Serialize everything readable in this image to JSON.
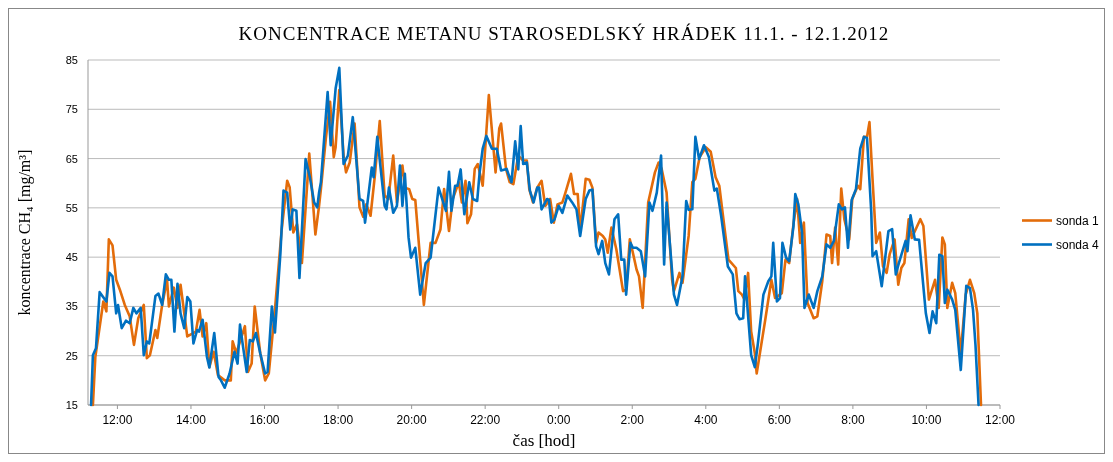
{
  "chart_data": {
    "type": "line",
    "title": "KONCENTRACE METANU STAROSEDLSKÝ HRÁDEK 11.1. - 12.1.2012",
    "xlabel": "čas [hod]",
    "ylabel": "koncentrace CH₄ [mg/m³]",
    "xlim": [
      "2012-01-11T11:12",
      "2012-01-12T12:00"
    ],
    "xticks": [
      {
        "value": "2012-01-11T12:00",
        "label": "12:00"
      },
      {
        "value": "2012-01-11T14:00",
        "label": "14:00"
      },
      {
        "value": "2012-01-11T16:00",
        "label": "16:00"
      },
      {
        "value": "2012-01-11T18:00",
        "label": "18:00"
      },
      {
        "value": "2012-01-11T20:00",
        "label": "20:00"
      },
      {
        "value": "2012-01-11T22:00",
        "label": "22:00"
      },
      {
        "value": "2012-01-12T00:00",
        "label": "0:00"
      },
      {
        "value": "2012-01-12T02:00",
        "label": "2:00"
      },
      {
        "value": "2012-01-12T04:00",
        "label": "4:00"
      },
      {
        "value": "2012-01-12T06:00",
        "label": "6:00"
      },
      {
        "value": "2012-01-12T08:00",
        "label": "8:00"
      },
      {
        "value": "2012-01-12T10:00",
        "label": "10:00"
      },
      {
        "value": "2012-01-12T12:00",
        "label": "12:00"
      }
    ],
    "ylim": [
      15,
      85
    ],
    "yticks": [
      15,
      25,
      35,
      45,
      55,
      65,
      75,
      85
    ],
    "grid": "y",
    "legend": "right",
    "marker": "none",
    "line_style": "solid",
    "series": [
      {
        "name": "sonda 1",
        "color": "#e36c0a",
        "x": [
          "2012-01-11T11:20",
          "2012-01-11T11:24",
          "2012-01-11T11:37",
          "2012-01-11T11:42",
          "2012-01-11T11:46",
          "2012-01-11T11:52",
          "2012-01-11T11:58",
          "2012-01-11T12:04",
          "2012-01-11T12:12",
          "2012-01-11T12:20",
          "2012-01-11T12:27",
          "2012-01-11T12:34",
          "2012-01-11T12:43",
          "2012-01-11T12:48",
          "2012-01-11T12:53",
          "2012-01-11T13:02",
          "2012-01-11T13:05",
          "2012-01-11T13:13",
          "2012-01-11T13:21",
          "2012-01-11T13:24",
          "2012-01-11T13:32",
          "2012-01-11T13:38",
          "2012-01-11T13:43",
          "2012-01-11T13:54",
          "2012-01-11T14:08",
          "2012-01-11T14:14",
          "2012-01-11T14:19",
          "2012-01-11T14:25",
          "2012-01-11T14:30",
          "2012-01-11T14:37",
          "2012-01-11T14:44",
          "2012-01-11T14:55",
          "2012-01-11T15:05",
          "2012-01-11T15:08",
          "2012-01-11T15:14",
          "2012-01-11T15:28",
          "2012-01-11T15:33",
          "2012-01-11T15:39",
          "2012-01-11T15:44",
          "2012-01-11T15:53",
          "2012-01-11T16:01",
          "2012-01-11T16:07",
          "2012-01-11T16:17",
          "2012-01-11T16:28",
          "2012-01-11T16:37",
          "2012-01-11T16:41",
          "2012-01-11T16:47",
          "2012-01-11T16:53",
          "2012-01-11T17:01",
          "2012-01-11T17:13",
          "2012-01-11T17:23",
          "2012-01-11T17:29",
          "2012-01-11T17:32",
          "2012-01-11T17:40",
          "2012-01-11T17:47",
          "2012-01-11T17:53",
          "2012-01-11T17:56",
          "2012-01-11T18:02",
          "2012-01-11T18:09",
          "2012-01-11T18:13",
          "2012-01-11T18:19",
          "2012-01-11T18:27",
          "2012-01-11T18:35",
          "2012-01-11T18:41",
          "2012-01-11T18:46",
          "2012-01-11T18:53",
          "2012-01-11T19:00",
          "2012-01-11T19:08",
          "2012-01-11T19:16",
          "2012-01-11T19:22",
          "2012-01-11T19:30",
          "2012-01-11T19:36",
          "2012-01-11T19:45",
          "2012-01-11T19:49",
          "2012-01-11T19:56",
          "2012-01-11T20:01",
          "2012-01-11T20:06",
          "2012-01-11T20:20",
          "2012-01-11T20:31",
          "2012-01-11T20:39",
          "2012-01-11T20:47",
          "2012-01-11T20:53",
          "2012-01-11T21:01",
          "2012-01-11T21:07",
          "2012-01-11T21:17",
          "2012-01-11T21:22",
          "2012-01-11T21:28",
          "2012-01-11T21:31",
          "2012-01-11T21:37",
          "2012-01-11T21:43",
          "2012-01-11T21:48",
          "2012-01-11T21:56",
          "2012-01-11T22:06",
          "2012-01-11T22:17",
          "2012-01-11T22:23",
          "2012-01-11T22:26",
          "2012-01-11T22:34",
          "2012-01-11T22:40",
          "2012-01-11T22:46",
          "2012-01-11T22:54",
          "2012-01-11T23:02",
          "2012-01-11T23:08",
          "2012-01-11T23:12",
          "2012-01-11T23:18",
          "2012-01-11T23:25",
          "2012-01-11T23:32",
          "2012-01-11T23:38",
          "2012-01-11T23:46",
          "2012-01-11T23:52",
          "2012-01-11T23:58",
          "2012-01-12T00:06",
          "2012-01-12T00:11",
          "2012-01-12T00:20",
          "2012-01-12T00:25",
          "2012-01-12T00:31",
          "2012-01-12T00:35",
          "2012-01-12T00:44",
          "2012-01-12T00:50",
          "2012-01-12T00:55",
          "2012-01-12T01:01",
          "2012-01-12T01:05",
          "2012-01-12T01:12",
          "2012-01-12T01:16",
          "2012-01-12T01:20",
          "2012-01-12T01:26",
          "2012-01-12T01:34",
          "2012-01-12T01:45",
          "2012-01-12T01:50",
          "2012-01-12T01:56",
          "2012-01-12T02:01",
          "2012-01-12T02:07",
          "2012-01-12T02:11",
          "2012-01-12T02:17",
          "2012-01-12T02:26",
          "2012-01-12T02:37",
          "2012-01-12T02:43",
          "2012-01-12T02:48",
          "2012-01-12T02:56",
          "2012-01-12T03:05",
          "2012-01-12T03:08",
          "2012-01-12T03:17",
          "2012-01-12T03:22",
          "2012-01-12T03:32",
          "2012-01-12T03:38",
          "2012-01-12T03:43",
          "2012-01-12T03:50",
          "2012-01-12T04:00",
          "2012-01-12T04:08",
          "2012-01-12T04:16",
          "2012-01-12T04:22",
          "2012-01-12T04:28",
          "2012-01-12T04:37",
          "2012-01-12T04:49",
          "2012-01-12T04:53",
          "2012-01-12T04:59",
          "2012-01-12T05:03",
          "2012-01-12T05:09",
          "2012-01-12T05:14",
          "2012-01-12T05:20",
          "2012-01-12T05:23",
          "2012-01-12T05:37",
          "2012-01-12T05:47",
          "2012-01-12T05:53",
          "2012-01-12T05:58",
          "2012-01-12T06:04",
          "2012-01-12T06:10",
          "2012-01-12T06:16",
          "2012-01-12T06:23",
          "2012-01-12T06:29",
          "2012-01-12T06:34",
          "2012-01-12T06:40",
          "2012-01-12T06:46",
          "2012-01-12T06:56",
          "2012-01-12T07:02",
          "2012-01-12T07:10",
          "2012-01-12T07:17",
          "2012-01-12T07:23",
          "2012-01-12T07:26",
          "2012-01-12T07:31",
          "2012-01-12T07:36",
          "2012-01-12T07:41",
          "2012-01-12T07:46",
          "2012-01-12T07:54",
          "2012-01-12T07:59",
          "2012-01-12T08:08",
          "2012-01-12T08:12",
          "2012-01-12T08:18",
          "2012-01-12T08:23",
          "2012-01-12T08:27",
          "2012-01-12T08:32",
          "2012-01-12T08:38",
          "2012-01-12T08:44",
          "2012-01-12T08:49",
          "2012-01-12T08:55",
          "2012-01-12T09:00",
          "2012-01-12T09:08",
          "2012-01-12T09:14",
          "2012-01-12T09:19",
          "2012-01-12T09:24",
          "2012-01-12T09:31",
          "2012-01-12T09:36",
          "2012-01-12T09:50",
          "2012-01-12T09:55",
          "2012-01-12T10:04",
          "2012-01-12T10:14",
          "2012-01-12T10:20",
          "2012-01-12T10:26",
          "2012-01-12T10:30",
          "2012-01-12T10:34",
          "2012-01-12T10:42",
          "2012-01-12T10:47",
          "2012-01-12T10:56",
          "2012-01-12T11:04",
          "2012-01-12T11:11",
          "2012-01-12T11:18",
          "2012-01-12T11:23",
          "2012-01-12T11:29"
        ],
        "values": [
          15,
          24.8,
          36.0,
          34.0,
          48.6,
          47.4,
          40.4,
          38.4,
          35.3,
          33.0,
          27.2,
          32.6,
          35.3,
          24.5,
          25.1,
          30.2,
          28.6,
          35.3,
          40.4,
          35.0,
          38.8,
          34.7,
          39.4,
          28.9,
          29.9,
          34.3,
          28.9,
          31.6,
          22.7,
          25.8,
          21.1,
          20.0,
          20.0,
          27.9,
          25.5,
          31.0,
          21.7,
          23.4,
          35.0,
          25.5,
          20.0,
          21.4,
          34.3,
          50.6,
          60.5,
          59.2,
          50.0,
          51.7,
          43.8,
          66.0,
          49.6,
          55.4,
          58.8,
          69.0,
          76.5,
          65.3,
          67.3,
          78.9,
          65.6,
          62.2,
          64.2,
          72.1,
          55.1,
          53.2,
          55.7,
          53.4,
          61.5,
          72.6,
          57.5,
          56.8,
          65.6,
          56.1,
          63.6,
          59.1,
          58.8,
          56.8,
          56.6,
          35.3,
          47.9,
          47.9,
          50.6,
          58.8,
          50.3,
          56.8,
          60.2,
          56.1,
          60.5,
          51.9,
          53.7,
          62.9,
          63.9,
          59.5,
          77.9,
          62.2,
          71.1,
          72.1,
          62.9,
          60.2,
          59.8,
          65.6,
          64.6,
          64.6,
          58.8,
          56.1,
          59.1,
          60.5,
          55.4,
          56.8,
          52.0,
          55.7,
          56.1,
          58.1,
          61.9,
          57.8,
          57.8,
          50.3,
          60.9,
          60.7,
          59.1,
          47.9,
          50.0,
          49.3,
          48.6,
          45.9,
          51.0,
          46.6,
          38.1,
          38.4,
          48.6,
          45.9,
          42.5,
          41.1,
          34.7,
          56.1,
          62.2,
          64.2,
          62.9,
          58.1,
          40.4,
          38.1,
          41.8,
          39.8,
          49.3,
          60.2,
          60.9,
          65.3,
          67.3,
          66.4,
          61.2,
          59.5,
          53.4,
          44.5,
          42.8,
          38.1,
          37.4,
          36.4,
          41.8,
          29.9,
          25.5,
          21.4,
          32.3,
          40.4,
          36.7,
          37.1,
          37.7,
          44.5,
          43.8,
          51.7,
          56.8,
          47.9,
          52.0,
          35.7,
          32.6,
          33.0,
          40.1,
          49.6,
          49.3,
          43.8,
          51.0,
          43.5,
          58.9,
          52.7,
          48.6,
          56.8,
          59.5,
          58.8,
          69.4,
          69.4,
          72.4,
          60.9,
          47.9,
          50.0,
          43.2,
          41.8,
          45.6,
          48.6,
          39.4,
          42.8,
          43.8,
          52.7,
          48.9,
          52.7,
          51.3,
          36.4,
          40.4,
          34.7,
          49.0,
          47.6,
          34.7,
          39.8,
          37.7,
          25.5,
          37.4,
          40.4,
          37.7,
          33.6,
          15
        ]
      },
      {
        "name": "sonda 4",
        "color": "#0070c0",
        "x": [
          "2012-01-11T11:17",
          "2012-01-11T11:20",
          "2012-01-11T11:25",
          "2012-01-11T11:31",
          "2012-01-11T11:42",
          "2012-01-11T11:47",
          "2012-01-11T11:52",
          "2012-01-11T11:58",
          "2012-01-11T12:01",
          "2012-01-11T12:07",
          "2012-01-11T12:14",
          "2012-01-11T12:20",
          "2012-01-11T12:26",
          "2012-01-11T12:31",
          "2012-01-11T12:38",
          "2012-01-11T12:43",
          "2012-01-11T12:48",
          "2012-01-11T12:52",
          "2012-01-11T13:02",
          "2012-01-11T13:07",
          "2012-01-11T13:13",
          "2012-01-11T13:19",
          "2012-01-11T13:24",
          "2012-01-11T13:28",
          "2012-01-11T13:33",
          "2012-01-11T13:38",
          "2012-01-11T13:43",
          "2012-01-11T13:49",
          "2012-01-11T13:54",
          "2012-01-11T13:59",
          "2012-01-11T14:04",
          "2012-01-11T14:10",
          "2012-01-11T14:13",
          "2012-01-11T14:19",
          "2012-01-11T14:26",
          "2012-01-11T14:30",
          "2012-01-11T14:38",
          "2012-01-11T14:45",
          "2012-01-11T14:49",
          "2012-01-11T14:55",
          "2012-01-11T15:03",
          "2012-01-11T15:11",
          "2012-01-11T15:16",
          "2012-01-11T15:20",
          "2012-01-11T15:25",
          "2012-01-11T15:31",
          "2012-01-11T15:36",
          "2012-01-11T15:41",
          "2012-01-11T15:46",
          "2012-01-11T15:53",
          "2012-01-11T16:01",
          "2012-01-11T16:05",
          "2012-01-11T16:12",
          "2012-01-11T16:17",
          "2012-01-11T16:26",
          "2012-01-11T16:31",
          "2012-01-11T16:37",
          "2012-01-11T16:42",
          "2012-01-11T16:46",
          "2012-01-11T16:52",
          "2012-01-11T16:57",
          "2012-01-11T17:07",
          "2012-01-11T17:14",
          "2012-01-11T17:21",
          "2012-01-11T17:26",
          "2012-01-11T17:29",
          "2012-01-11T17:32",
          "2012-01-11T17:43",
          "2012-01-11T17:48",
          "2012-01-11T17:56",
          "2012-01-11T18:02",
          "2012-01-11T18:09",
          "2012-01-11T18:16",
          "2012-01-11T18:24",
          "2012-01-11T18:35",
          "2012-01-11T18:41",
          "2012-01-11T18:44",
          "2012-01-11T18:55",
          "2012-01-11T18:58",
          "2012-01-11T19:04",
          "2012-01-11T19:16",
          "2012-01-11T19:19",
          "2012-01-11T19:23",
          "2012-01-11T19:30",
          "2012-01-11T19:36",
          "2012-01-11T19:41",
          "2012-01-11T19:45",
          "2012-01-11T19:49",
          "2012-01-11T19:55",
          "2012-01-11T19:59",
          "2012-01-11T20:06",
          "2012-01-11T20:14",
          "2012-01-11T20:23",
          "2012-01-11T20:31",
          "2012-01-11T20:44",
          "2012-01-11T20:56",
          "2012-01-11T21:01",
          "2012-01-11T21:05",
          "2012-01-11T21:11",
          "2012-01-11T21:15",
          "2012-01-11T21:20",
          "2012-01-11T21:26",
          "2012-01-11T21:34",
          "2012-01-11T21:40",
          "2012-01-11T21:47",
          "2012-01-11T21:51",
          "2012-01-11T21:56",
          "2012-01-11T22:02",
          "2012-01-11T22:11",
          "2012-01-11T22:19",
          "2012-01-11T22:26",
          "2012-01-11T22:35",
          "2012-01-11T22:39",
          "2012-01-11T22:43",
          "2012-01-11T22:49",
          "2012-01-11T22:54",
          "2012-01-11T22:58",
          "2012-01-11T23:02",
          "2012-01-11T23:08",
          "2012-01-11T23:13",
          "2012-01-11T23:19",
          "2012-01-11T23:25",
          "2012-01-11T23:28",
          "2012-01-11T23:32",
          "2012-01-11T23:41",
          "2012-01-11T23:44",
          "2012-01-11T23:48",
          "2012-01-11T23:53",
          "2012-01-12T00:00",
          "2012-01-12T00:06",
          "2012-01-12T00:14",
          "2012-01-12T00:22",
          "2012-01-12T00:29",
          "2012-01-12T00:35",
          "2012-01-12T00:44",
          "2012-01-12T00:50",
          "2012-01-12T00:55",
          "2012-01-12T01:01",
          "2012-01-12T01:05",
          "2012-01-12T01:11",
          "2012-01-12T01:16",
          "2012-01-12T01:22",
          "2012-01-12T01:31",
          "2012-01-12T01:37",
          "2012-01-12T01:42",
          "2012-01-12T01:47",
          "2012-01-12T01:50",
          "2012-01-12T01:57",
          "2012-01-12T02:01",
          "2012-01-12T02:07",
          "2012-01-12T02:14",
          "2012-01-12T02:21",
          "2012-01-12T02:28",
          "2012-01-12T02:33",
          "2012-01-12T02:40",
          "2012-01-12T02:47",
          "2012-01-12T02:52",
          "2012-01-12T02:56",
          "2012-01-12T03:08",
          "2012-01-12T03:13",
          "2012-01-12T03:22",
          "2012-01-12T03:28",
          "2012-01-12T03:32",
          "2012-01-12T03:38",
          "2012-01-12T03:43",
          "2012-01-12T03:49",
          "2012-01-12T03:57",
          "2012-01-12T04:05",
          "2012-01-12T04:14",
          "2012-01-12T04:18",
          "2012-01-12T04:25",
          "2012-01-12T04:36",
          "2012-01-12T04:44",
          "2012-01-12T04:50",
          "2012-01-12T04:55",
          "2012-01-12T05:01",
          "2012-01-12T05:04",
          "2012-01-12T05:14",
          "2012-01-12T05:20",
          "2012-01-12T05:25",
          "2012-01-12T05:34",
          "2012-01-12T05:42",
          "2012-01-12T05:47",
          "2012-01-12T05:50",
          "2012-01-12T05:56",
          "2012-01-12T06:01",
          "2012-01-12T06:05",
          "2012-01-12T06:11",
          "2012-01-12T06:16",
          "2012-01-12T06:23",
          "2012-01-12T06:26",
          "2012-01-12T06:31",
          "2012-01-12T06:37",
          "2012-01-12T06:41",
          "2012-01-12T06:48",
          "2012-01-12T06:56",
          "2012-01-12T07:02",
          "2012-01-12T07:10",
          "2012-01-12T07:17",
          "2012-01-12T07:23",
          "2012-01-12T07:29",
          "2012-01-12T07:37",
          "2012-01-12T07:42",
          "2012-01-12T07:47",
          "2012-01-12T07:52",
          "2012-01-12T07:58",
          "2012-01-12T08:05",
          "2012-01-12T08:12",
          "2012-01-12T08:18",
          "2012-01-12T08:23",
          "2012-01-12T08:30",
          "2012-01-12T08:32",
          "2012-01-12T08:38",
          "2012-01-12T08:47",
          "2012-01-12T08:58",
          "2012-01-12T09:04",
          "2012-01-12T09:10",
          "2012-01-12T09:15",
          "2012-01-12T09:26",
          "2012-01-12T09:29",
          "2012-01-12T09:34",
          "2012-01-12T09:41",
          "2012-01-12T09:48",
          "2012-01-12T09:59",
          "2012-01-12T10:05",
          "2012-01-12T10:10",
          "2012-01-12T10:16",
          "2012-01-12T10:21",
          "2012-01-12T10:26",
          "2012-01-12T10:30",
          "2012-01-12T10:34",
          "2012-01-12T10:42",
          "2012-01-12T10:47",
          "2012-01-12T10:56",
          "2012-01-12T11:05",
          "2012-01-12T11:11",
          "2012-01-12T11:16",
          "2012-01-12T11:20",
          "2012-01-12T11:25"
        ],
        "values": [
          15,
          25.1,
          26.5,
          37.9,
          36.0,
          41.8,
          41.1,
          33.6,
          35.3,
          30.6,
          32.1,
          31.6,
          34.7,
          33.6,
          34.7,
          25.1,
          27.9,
          27.5,
          37.1,
          37.6,
          35.3,
          41.5,
          40.4,
          40.4,
          29.9,
          39.6,
          33.6,
          30.6,
          36.9,
          36.0,
          27.5,
          30.2,
          29.9,
          32.3,
          24.8,
          22.6,
          29.6,
          20.7,
          20.0,
          18.5,
          21.4,
          25.8,
          23.4,
          31.3,
          26.8,
          21.7,
          28.2,
          27.9,
          29.6,
          25.5,
          21.4,
          21.7,
          35.0,
          29.7,
          45.9,
          58.5,
          58.1,
          50.6,
          54.7,
          54.4,
          40.8,
          64.9,
          61.2,
          56.1,
          55.1,
          58.1,
          60.2,
          78.5,
          67.7,
          79.2,
          83.4,
          63.9,
          65.6,
          73.4,
          56.8,
          56.4,
          52.0,
          63.2,
          61.2,
          69.4,
          55.4,
          54.7,
          59.1,
          54.0,
          55.4,
          63.6,
          55.4,
          61.9,
          49.0,
          44.9,
          46.9,
          37.4,
          43.8,
          44.9,
          59.1,
          54.4,
          62.3,
          54.4,
          59.5,
          59.5,
          62.8,
          53.7,
          60.2,
          56.8,
          56.4,
          62.2,
          67.0,
          69.6,
          67.0,
          67.0,
          62.6,
          62.9,
          61.5,
          60.2,
          68.5,
          62.8,
          71.6,
          63.9,
          64.2,
          58.5,
          56.1,
          59.1,
          59.1,
          54.7,
          56.8,
          56.6,
          52.0,
          52.6,
          55.4,
          54.0,
          57.5,
          56.1,
          54.7,
          49.3,
          56.8,
          58.5,
          58.7,
          47.2,
          45.6,
          48.3,
          43.8,
          41.5,
          52.7,
          53.7,
          44.5,
          44.5,
          37.4,
          47.9,
          46.9,
          46.9,
          46.2,
          41.1,
          56.1,
          54.4,
          58.1,
          65.6,
          43.5,
          56.1,
          37.4,
          35.3,
          41.1,
          56.4,
          54.6,
          54.7,
          69.4,
          64.9,
          67.7,
          65.3,
          58.5,
          58.9,
          53.4,
          43.1,
          41.5,
          33.6,
          32.4,
          32.6,
          41.1,
          25.1,
          22.7,
          27.5,
          37.4,
          40.1,
          41.1,
          47.9,
          36.0,
          36.7,
          47.9,
          44.9,
          44.2,
          51.3,
          57.8,
          55.7,
          50.0,
          34.7,
          37.4,
          34.7,
          38.1,
          41.1,
          47.6,
          46.9,
          48.3,
          55.7,
          54.7,
          55.1,
          46.9,
          56.6,
          58.8,
          67.0,
          69.4,
          69.2,
          54.0,
          45.2,
          46.2,
          39.1,
          50.3,
          50.7,
          41.5,
          43.8,
          48.3,
          46.2,
          53.5,
          48.6,
          48.5,
          33.6,
          29.6,
          34.0,
          31.6,
          45.5,
          45.2,
          35.7,
          38.4,
          36.4,
          34.3,
          22.1,
          39.2,
          38.7,
          34.3,
          27.2,
          15
        ]
      }
    ]
  }
}
